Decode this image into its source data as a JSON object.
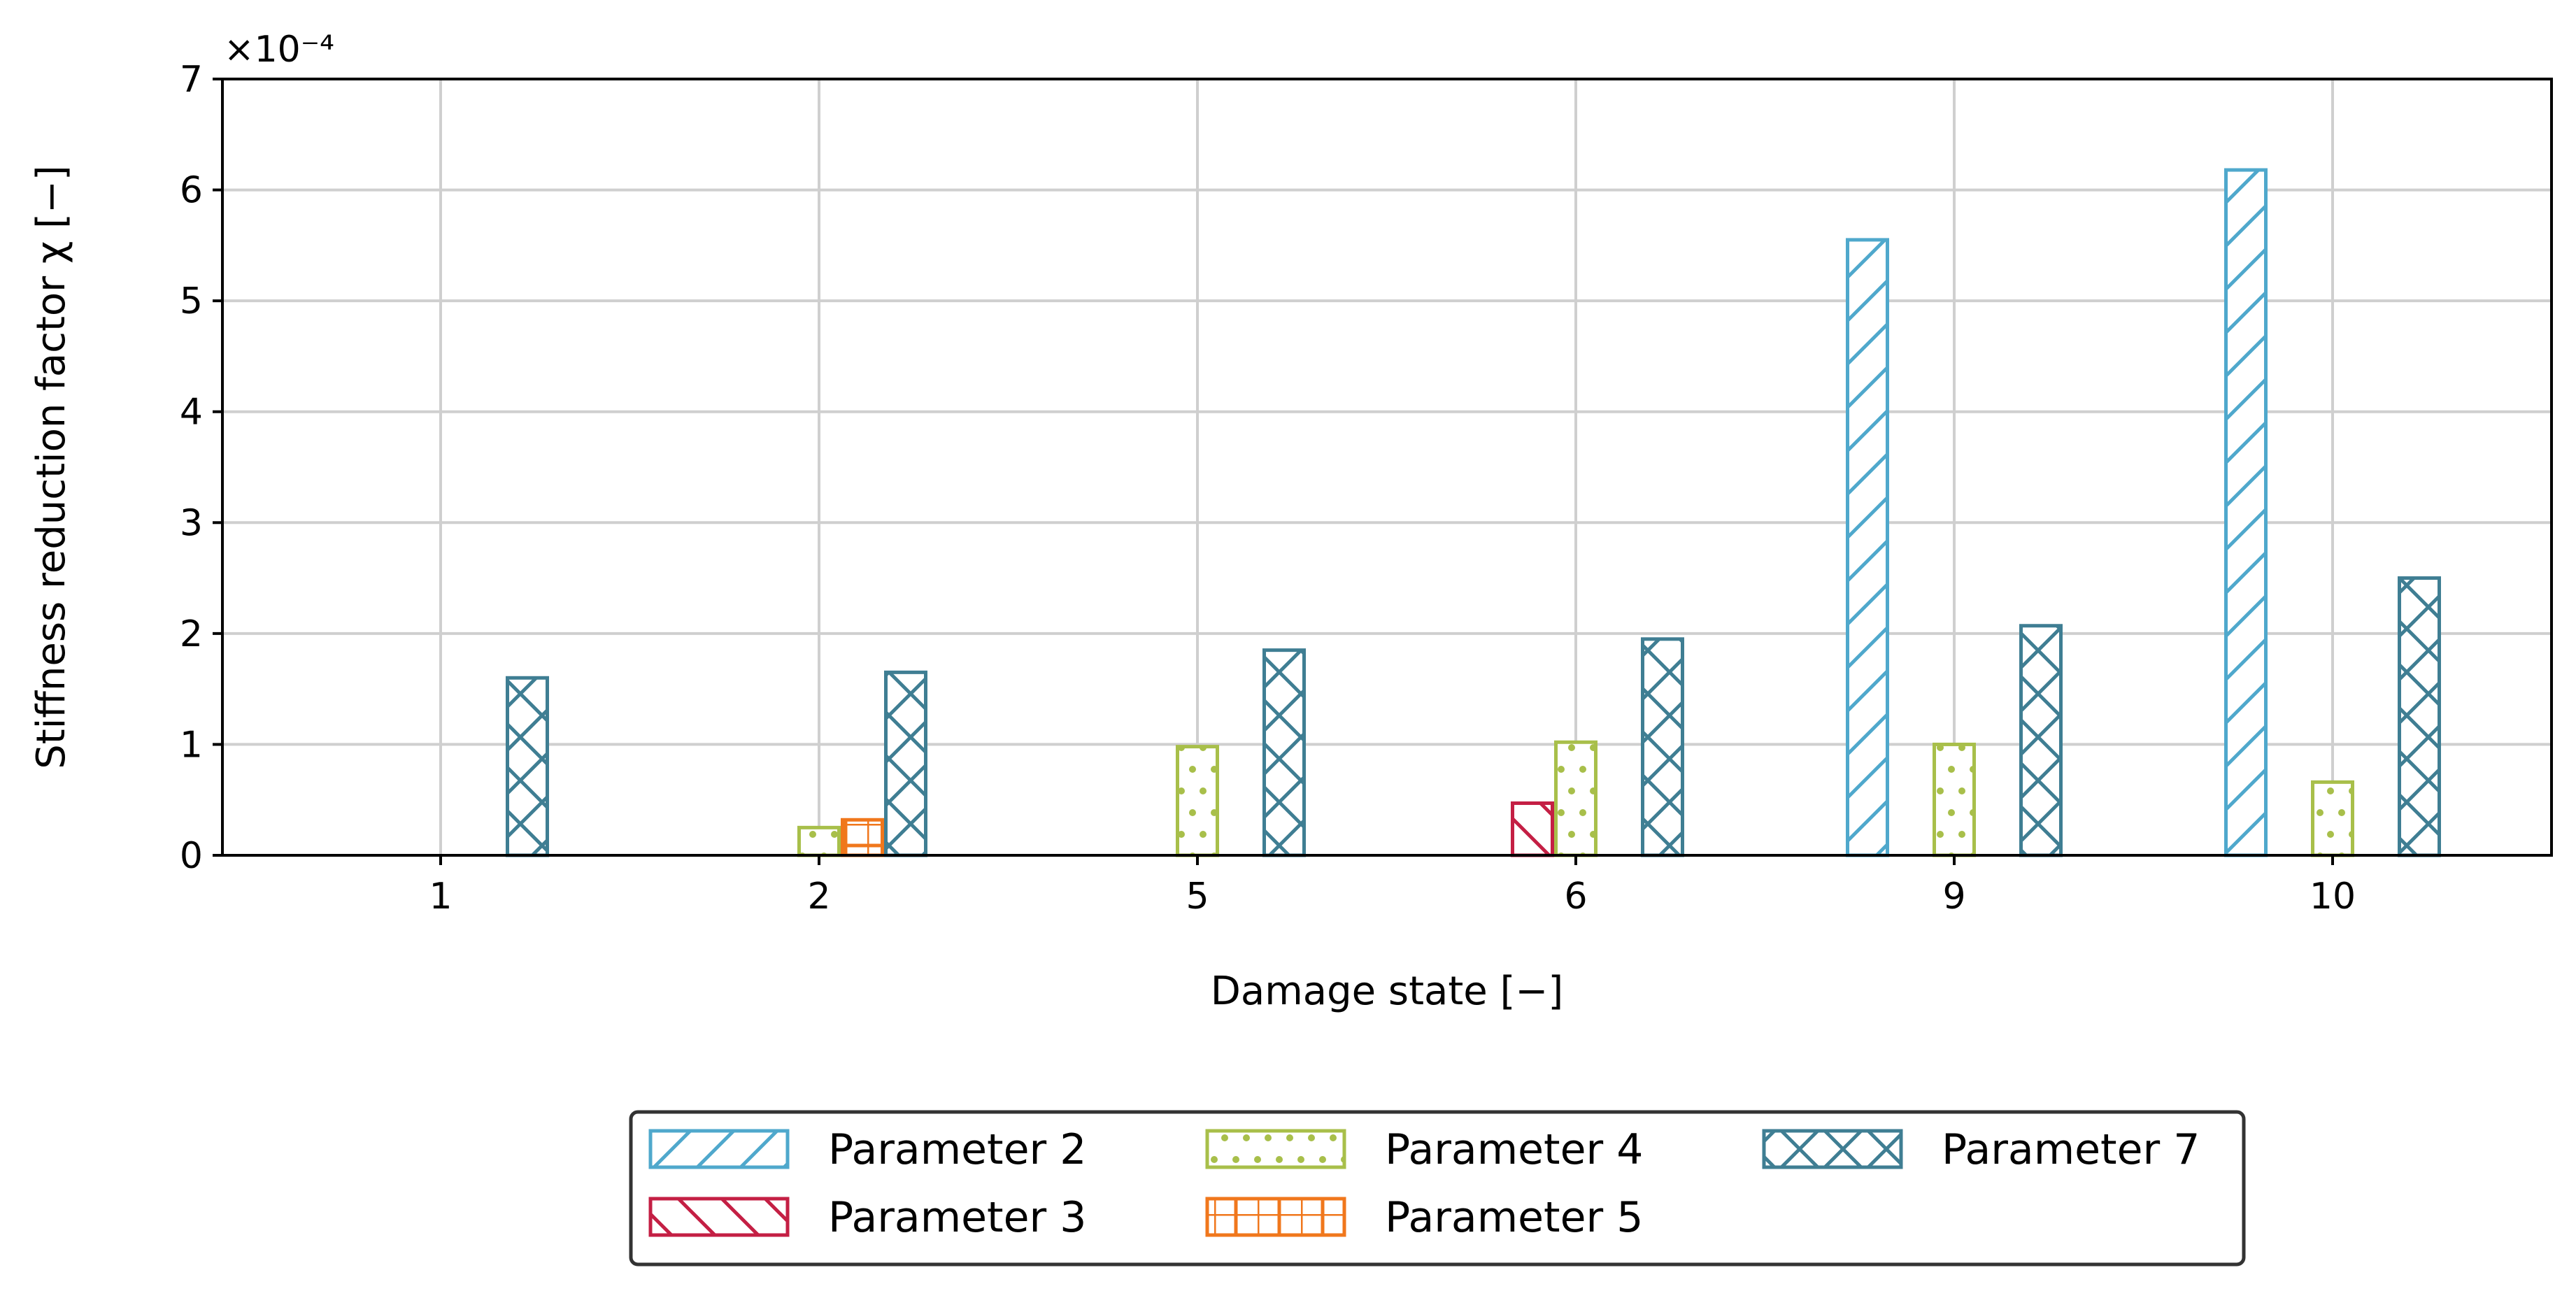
{
  "chart_data": {
    "type": "bar",
    "categories": [
      "1",
      "2",
      "5",
      "6",
      "9",
      "10"
    ],
    "series": [
      {
        "name": "Parameter 2",
        "values": [
          0.0,
          0.0,
          0.0,
          0.0,
          5.55,
          6.18
        ],
        "color": "#4fa8cc",
        "hatch": "diagonal-forward"
      },
      {
        "name": "Parameter 3",
        "values": [
          0.0,
          0.0,
          0.0,
          0.47,
          0.0,
          0.0
        ],
        "color": "#c41f44",
        "hatch": "diagonal-back"
      },
      {
        "name": "Parameter 4",
        "values": [
          0.0,
          0.25,
          0.98,
          1.02,
          1.0,
          0.66
        ],
        "color": "#a8bf4a",
        "hatch": "dots"
      },
      {
        "name": "Parameter 5",
        "values": [
          0.0,
          0.32,
          0.0,
          0.0,
          0.0,
          0.0
        ],
        "color": "#f0771c",
        "hatch": "grid"
      },
      {
        "name": "Parameter 7",
        "values": [
          1.6,
          1.65,
          1.85,
          1.95,
          2.07,
          2.5
        ],
        "color": "#3f7e93",
        "hatch": "cross"
      }
    ],
    "xlabel": "Damage state [−]",
    "ylabel": "Stiffness reduction factor χ [−]",
    "y_multiplier_label": "×10⁻⁴",
    "ylim": [
      0,
      7
    ],
    "yticks": [
      "0",
      "1",
      "2",
      "3",
      "4",
      "5",
      "6",
      "7"
    ],
    "grid": true,
    "legend_placement": "bottom-center"
  }
}
